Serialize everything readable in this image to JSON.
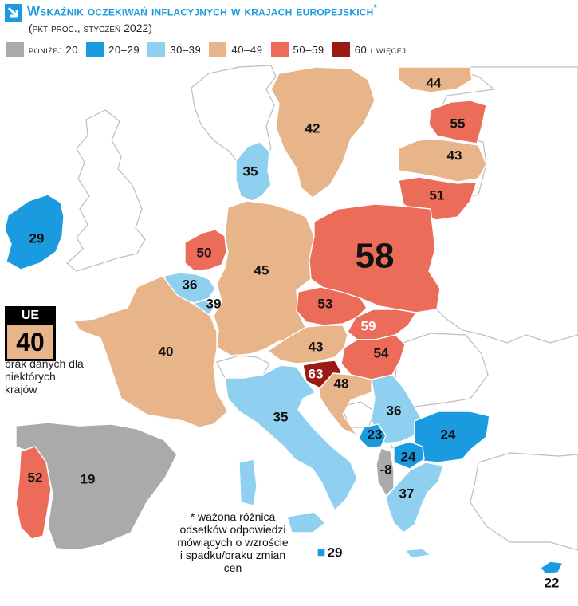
{
  "header": {
    "title": "Wskaźnik oczekiwań inflacyjnych w krajach europejskich",
    "title_marker": "*",
    "subtitle": "(pkt proc., styczeń 2022)"
  },
  "legend": [
    {
      "label": "poniżej 20",
      "color": "#aaaaaa"
    },
    {
      "label": "20–29",
      "color": "#1a9be0"
    },
    {
      "label": "30–39",
      "color": "#8fd0f0"
    },
    {
      "label": "40–49",
      "color": "#e8b58a"
    },
    {
      "label": "50–59",
      "color": "#ec6c5a"
    },
    {
      "label": "60 i więcej",
      "color": "#9a1b14"
    }
  ],
  "colors": {
    "no_data": "#ffffff",
    "border": "#bdbdbd",
    "title_blue": "#1a9be0"
  },
  "eu_box": {
    "label": "UE",
    "value": "40"
  },
  "no_data_note": "brak danych dla niektórych krajów",
  "footnote": "* ważona różnica odsetków odpowiedzi mówiących o wzroście i spadku/braku zmian cen",
  "countries": [
    {
      "id": "finland",
      "value": "44"
    },
    {
      "id": "sweden",
      "value": "42"
    },
    {
      "id": "estonia",
      "value": "55"
    },
    {
      "id": "latvia",
      "value": "43"
    },
    {
      "id": "lithuania",
      "value": "51"
    },
    {
      "id": "denmark",
      "value": "35"
    },
    {
      "id": "ireland",
      "value": "29"
    },
    {
      "id": "netherlands",
      "value": "50"
    },
    {
      "id": "belgium",
      "value": "36"
    },
    {
      "id": "luxembourg",
      "value": "39"
    },
    {
      "id": "germany",
      "value": "45"
    },
    {
      "id": "poland",
      "value": "58"
    },
    {
      "id": "czechia",
      "value": "53"
    },
    {
      "id": "slovakia",
      "value": "59"
    },
    {
      "id": "austria",
      "value": "43"
    },
    {
      "id": "hungary",
      "value": "54"
    },
    {
      "id": "slovenia",
      "value": "63"
    },
    {
      "id": "croatia",
      "value": "48"
    },
    {
      "id": "france",
      "value": "40"
    },
    {
      "id": "italy",
      "value": "35"
    },
    {
      "id": "serbia",
      "value": "36"
    },
    {
      "id": "montenegro",
      "value": "23"
    },
    {
      "id": "bulgaria",
      "value": "24"
    },
    {
      "id": "north-macedonia",
      "value": "24"
    },
    {
      "id": "albania",
      "value": "-8"
    },
    {
      "id": "greece",
      "value": "37"
    },
    {
      "id": "spain",
      "value": "19"
    },
    {
      "id": "portugal",
      "value": "52"
    },
    {
      "id": "malta",
      "value": "29"
    },
    {
      "id": "cyprus",
      "value": "22"
    }
  ]
}
